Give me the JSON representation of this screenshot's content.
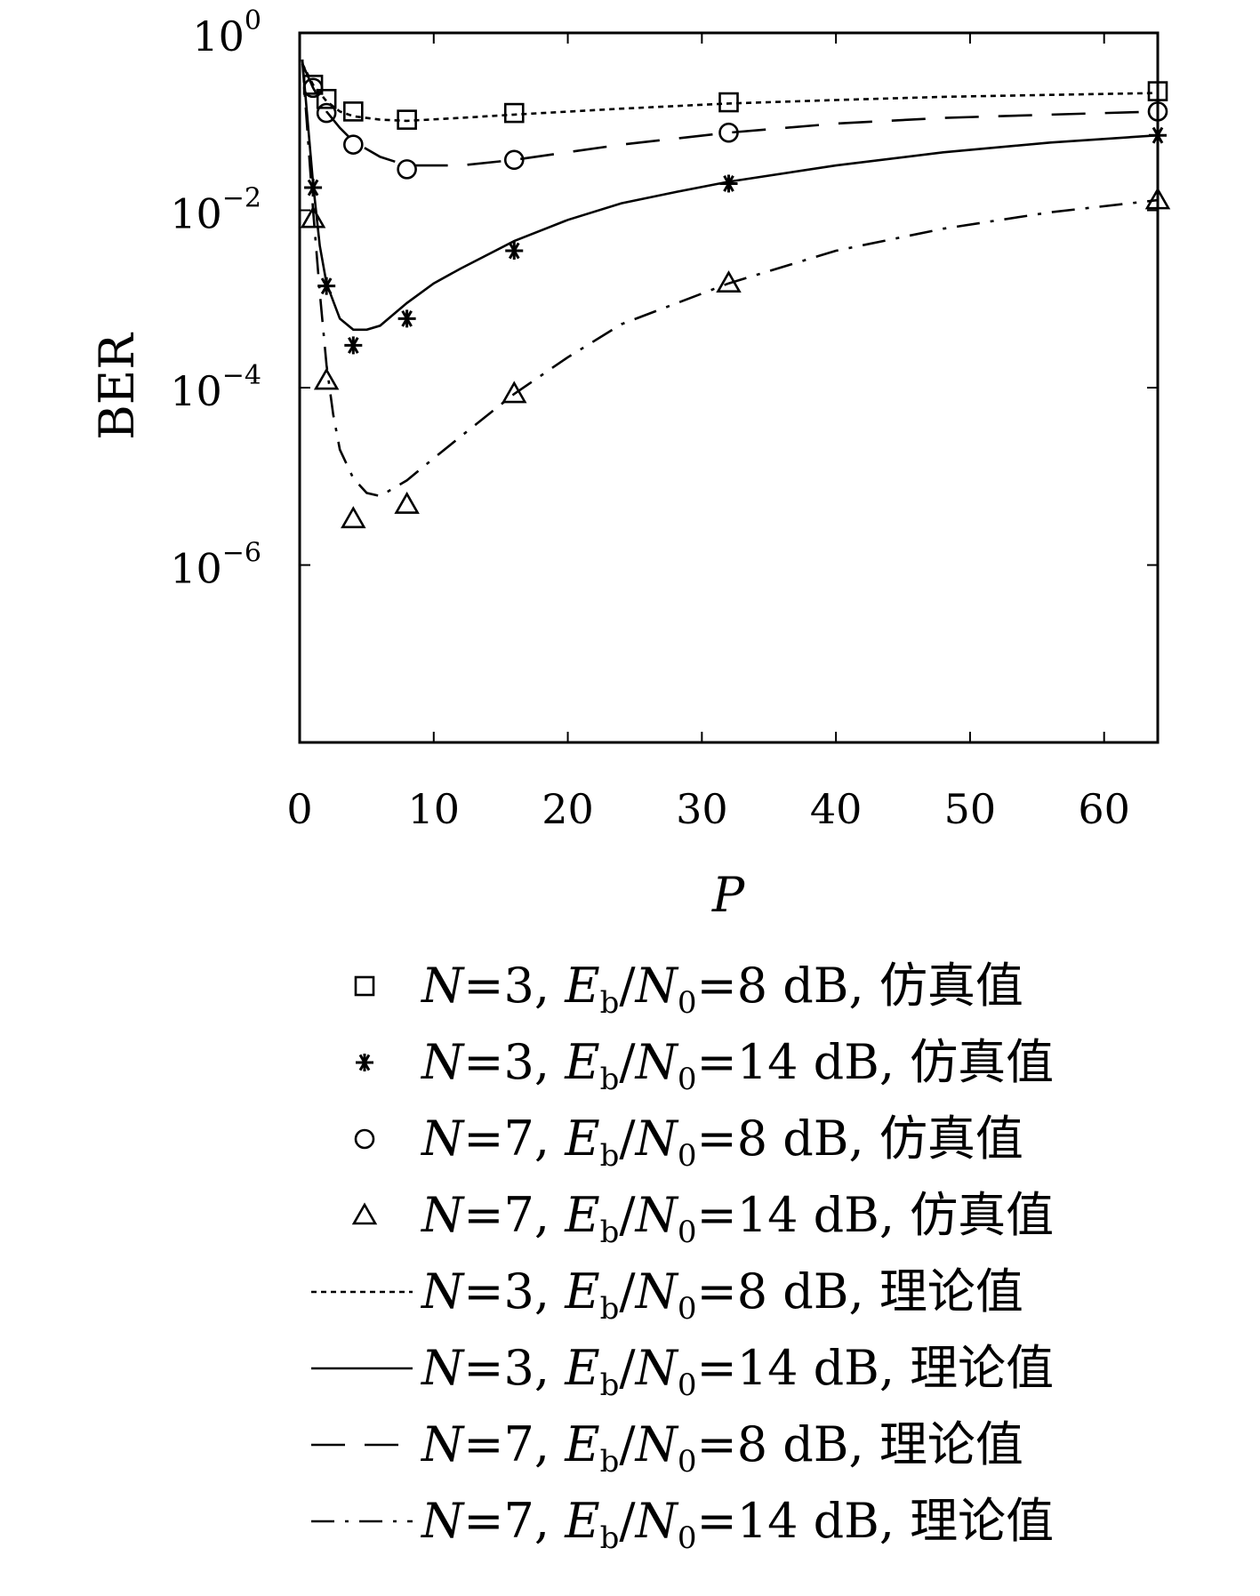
{
  "chart_data": {
    "type": "line",
    "xlabel": "P",
    "ylabel": "BER",
    "xlim": [
      0,
      64
    ],
    "ylim_log10": [
      -8,
      0
    ],
    "yscale": "log",
    "x_ticks": [
      "0",
      "10",
      "20",
      "30",
      "40",
      "50",
      "60"
    ],
    "y_ticks": [
      {
        "base": "10",
        "exp": "0"
      },
      {
        "base": "10",
        "exp": "−2"
      },
      {
        "base": "10",
        "exp": "−4"
      },
      {
        "base": "10",
        "exp": "−6"
      }
    ],
    "legend_position": "below",
    "series": [
      {
        "name": "N=3, Eb/N0=8 dB, 仿真值",
        "kind": "markers",
        "marker": "square",
        "x": [
          1,
          2,
          4,
          8,
          16,
          32,
          64
        ],
        "y": [
          0.26,
          0.18,
          0.13,
          0.105,
          0.125,
          0.165,
          0.22
        ]
      },
      {
        "name": "N=3, Eb/N0=14 dB, 仿真值",
        "kind": "markers",
        "marker": "star",
        "x": [
          1,
          2,
          4,
          8,
          16,
          32,
          64
        ],
        "y": [
          0.018,
          0.0014,
          0.0003,
          0.0006,
          0.0035,
          0.02,
          0.07
        ]
      },
      {
        "name": "N=7, Eb/N0=8 dB, 仿真值",
        "kind": "markers",
        "marker": "circle",
        "x": [
          1,
          2,
          4,
          8,
          16,
          32,
          64
        ],
        "y": [
          0.24,
          0.125,
          0.055,
          0.029,
          0.037,
          0.075,
          0.13
        ]
      },
      {
        "name": "N=7, Eb/N0=14 dB, 仿真值",
        "kind": "markers",
        "marker": "triangle",
        "x": [
          1,
          2,
          4,
          8,
          16,
          32,
          64
        ],
        "y": [
          0.008,
          0.00012,
          3.3e-06,
          4.8e-06,
          8.5e-05,
          0.0015,
          0.013
        ]
      },
      {
        "name": "N=3, Eb/N0=8 dB, 理论值",
        "kind": "line",
        "dash": "dotted",
        "x": [
          0.2,
          1,
          2,
          3,
          4,
          6,
          8,
          12,
          16,
          24,
          32,
          40,
          48,
          56,
          64
        ],
        "y": [
          0.45,
          0.26,
          0.17,
          0.13,
          0.115,
          0.105,
          0.102,
          0.11,
          0.12,
          0.14,
          0.16,
          0.175,
          0.19,
          0.2,
          0.21
        ]
      },
      {
        "name": "N=3, Eb/N0=14 dB, 理论值",
        "kind": "line",
        "dash": "solid",
        "x": [
          0.2,
          1,
          1.5,
          2,
          3,
          4,
          5,
          6,
          8,
          10,
          12,
          16,
          20,
          24,
          28,
          32,
          40,
          48,
          56,
          64
        ],
        "y": [
          0.5,
          0.02,
          0.004,
          0.0015,
          0.0006,
          0.00045,
          0.00045,
          0.0005,
          0.0009,
          0.0015,
          0.0022,
          0.0045,
          0.0078,
          0.012,
          0.016,
          0.021,
          0.032,
          0.045,
          0.058,
          0.07
        ]
      },
      {
        "name": "N=7, Eb/N0=8 dB, 理论值",
        "kind": "line",
        "dash": "dashed",
        "x": [
          0.2,
          1,
          2,
          3,
          4,
          6,
          8,
          12,
          16,
          24,
          32,
          40,
          48,
          56,
          64
        ],
        "y": [
          0.45,
          0.24,
          0.13,
          0.085,
          0.06,
          0.04,
          0.032,
          0.032,
          0.037,
          0.055,
          0.075,
          0.095,
          0.11,
          0.12,
          0.13
        ]
      },
      {
        "name": "N=7, Eb/N0=14 dB, 理论值",
        "kind": "line",
        "dash": "dashdot",
        "x": [
          0.2,
          1,
          1.5,
          2,
          2.5,
          3,
          4,
          5,
          6,
          8,
          10,
          12,
          16,
          20,
          24,
          32,
          40,
          48,
          56,
          64
        ],
        "y": [
          0.5,
          0.01,
          0.0012,
          0.00018,
          5e-05,
          2e-05,
          9.5e-06,
          6.5e-06,
          6e-06,
          9e-06,
          1.6e-05,
          2.8e-05,
          8.5e-05,
          0.00022,
          0.00052,
          0.0015,
          0.0035,
          0.0062,
          0.0095,
          0.013
        ]
      }
    ]
  }
}
